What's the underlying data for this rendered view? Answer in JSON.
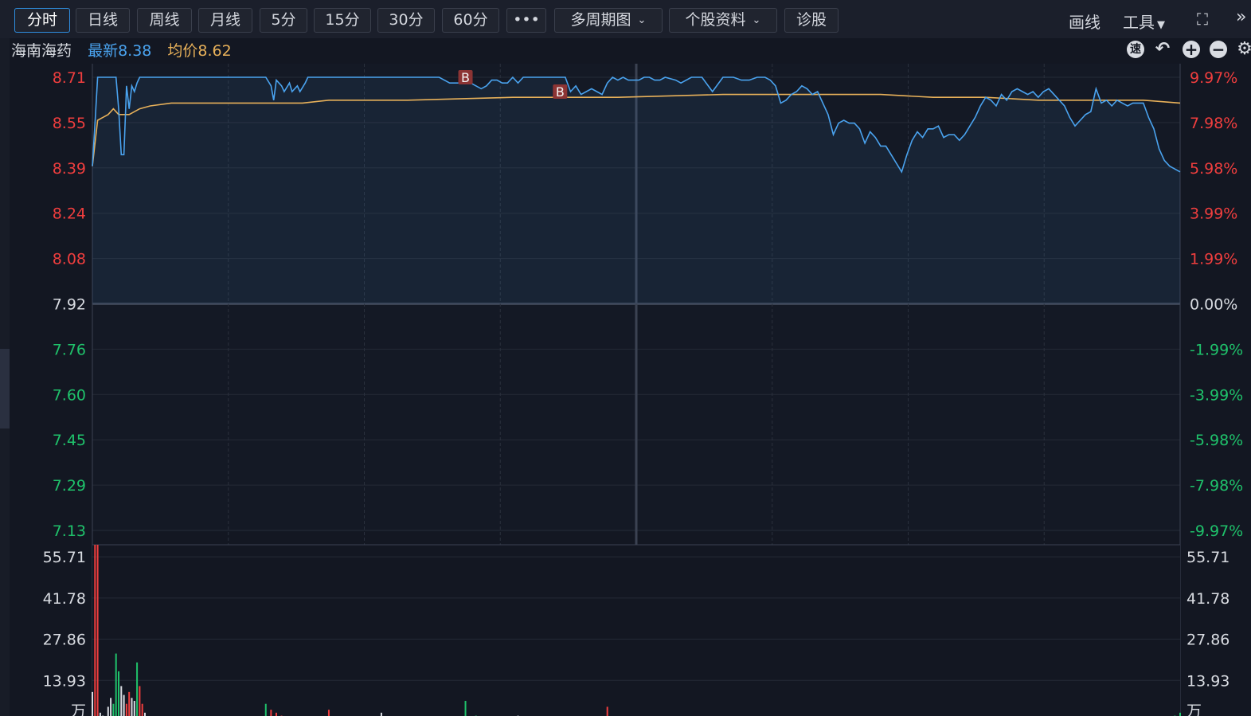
{
  "toolbar": {
    "periods": [
      {
        "label": "分时",
        "active": true
      },
      {
        "label": "日线"
      },
      {
        "label": "周线"
      },
      {
        "label": "月线"
      },
      {
        "label": "5分"
      },
      {
        "label": "15分"
      },
      {
        "label": "30分"
      },
      {
        "label": "60分"
      },
      {
        "label": "•••"
      },
      {
        "label": "多周期图"
      },
      {
        "label": "个股资料"
      },
      {
        "label": "诊股"
      }
    ],
    "draw_label": "画线",
    "tools_label": "工具"
  },
  "info": {
    "name": "海南海药",
    "latest": "最新8.38",
    "avg": "均价8.62"
  },
  "icons": [
    "speed-icon",
    "undo-icon",
    "zoom-in-icon",
    "zoom-out-icon",
    "settings-icon"
  ],
  "colors": {
    "price_line": "#4aa3ef",
    "avg_line": "#e8b15a",
    "up": "#f03e3e",
    "down": "#1fc26b",
    "neutral": "#d9dce2",
    "trade_marker": "#8c3434"
  },
  "chart_data": [
    {
      "type": "line",
      "name": "intraday-price",
      "ylim": [
        7.13,
        8.71
      ],
      "y_ticks_left": [
        "8.71",
        "8.55",
        "8.39",
        "8.24",
        "8.08",
        "7.92",
        "7.76",
        "7.60",
        "7.45",
        "7.29",
        "7.13"
      ],
      "y_ticks_right": [
        "9.97%",
        "7.98%",
        "5.98%",
        "3.99%",
        "1.99%",
        "0.00%",
        "-1.99%",
        "-3.99%",
        "-5.98%",
        "-7.98%",
        "-9.97%"
      ],
      "prev_close": 7.92,
      "sessions": 240,
      "series": [
        {
          "name": "price",
          "points": [
            [
              0,
              8.4
            ],
            [
              1,
              8.55
            ],
            [
              2,
              8.71
            ],
            [
              9,
              8.71
            ],
            [
              10,
              8.6
            ],
            [
              11,
              8.44
            ],
            [
              12,
              8.44
            ],
            [
              13,
              8.68
            ],
            [
              14,
              8.6
            ],
            [
              15,
              8.68
            ],
            [
              16,
              8.66
            ],
            [
              17,
              8.69
            ],
            [
              18,
              8.71
            ],
            [
              66,
              8.71
            ],
            [
              68,
              8.68
            ],
            [
              69,
              8.63
            ],
            [
              70,
              8.7
            ],
            [
              72,
              8.68
            ],
            [
              73,
              8.66
            ],
            [
              75,
              8.69
            ],
            [
              76,
              8.66
            ],
            [
              78,
              8.68
            ],
            [
              79,
              8.66
            ],
            [
              81,
              8.69
            ],
            [
              82,
              8.71
            ],
            [
              83,
              8.71
            ],
            [
              120,
              8.71
            ],
            [
              128,
              8.71
            ],
            [
              132,
              8.71
            ],
            [
              136,
              8.69
            ],
            [
              138,
              8.69
            ],
            [
              140,
              8.69
            ],
            [
              142,
              8.7
            ],
            [
              144,
              8.69
            ],
            [
              146,
              8.68
            ],
            [
              148,
              8.67
            ],
            [
              150,
              8.68
            ],
            [
              152,
              8.7
            ],
            [
              154,
              8.7
            ],
            [
              156,
              8.69
            ],
            [
              158,
              8.69
            ],
            [
              160,
              8.71
            ],
            [
              162,
              8.69
            ],
            [
              164,
              8.71
            ],
            [
              166,
              8.71
            ],
            [
              180,
              8.71
            ],
            [
              182,
              8.66
            ],
            [
              184,
              8.68
            ],
            [
              186,
              8.65
            ],
            [
              188,
              8.66
            ],
            [
              190,
              8.67
            ],
            [
              192,
              8.66
            ],
            [
              194,
              8.65
            ],
            [
              196,
              8.69
            ],
            [
              198,
              8.71
            ],
            [
              200,
              8.7
            ],
            [
              202,
              8.71
            ],
            [
              204,
              8.7
            ],
            [
              206,
              8.7
            ],
            [
              208,
              8.7
            ],
            [
              210,
              8.71
            ],
            [
              212,
              8.71
            ],
            [
              214,
              8.7
            ],
            [
              216,
              8.7
            ],
            [
              218,
              8.71
            ],
            [
              222,
              8.7
            ],
            [
              224,
              8.69
            ],
            [
              228,
              8.71
            ],
            [
              232,
              8.71
            ],
            [
              236,
              8.66
            ],
            [
              240,
              8.71
            ],
            [
              244,
              8.71
            ],
            [
              247,
              8.7
            ],
            [
              250,
              8.7
            ],
            [
              253,
              8.71
            ],
            [
              256,
              8.71
            ],
            [
              258,
              8.7
            ],
            [
              260,
              8.68
            ],
            [
              262,
              8.62
            ],
            [
              264,
              8.63
            ],
            [
              266,
              8.65
            ],
            [
              268,
              8.66
            ],
            [
              270,
              8.68
            ],
            [
              272,
              8.67
            ],
            [
              274,
              8.65
            ],
            [
              276,
              8.66
            ],
            [
              278,
              8.62
            ],
            [
              280,
              8.58
            ],
            [
              282,
              8.51
            ],
            [
              284,
              8.55
            ],
            [
              286,
              8.56
            ],
            [
              288,
              8.55
            ],
            [
              290,
              8.55
            ],
            [
              292,
              8.53
            ],
            [
              294,
              8.48
            ],
            [
              296,
              8.52
            ],
            [
              298,
              8.5
            ],
            [
              300,
              8.47
            ],
            [
              302,
              8.47
            ],
            [
              304,
              8.44
            ],
            [
              306,
              8.41
            ],
            [
              308,
              8.38
            ],
            [
              310,
              8.44
            ],
            [
              312,
              8.49
            ],
            [
              314,
              8.52
            ],
            [
              316,
              8.5
            ],
            [
              318,
              8.53
            ],
            [
              320,
              8.53
            ],
            [
              322,
              8.54
            ],
            [
              324,
              8.5
            ],
            [
              326,
              8.51
            ],
            [
              328,
              8.51
            ],
            [
              330,
              8.49
            ],
            [
              332,
              8.51
            ],
            [
              334,
              8.54
            ],
            [
              336,
              8.57
            ],
            [
              338,
              8.61
            ],
            [
              340,
              8.64
            ],
            [
              342,
              8.63
            ],
            [
              344,
              8.61
            ],
            [
              346,
              8.65
            ],
            [
              348,
              8.63
            ],
            [
              350,
              8.66
            ],
            [
              352,
              8.67
            ],
            [
              354,
              8.66
            ],
            [
              356,
              8.65
            ],
            [
              358,
              8.66
            ],
            [
              360,
              8.64
            ],
            [
              362,
              8.66
            ],
            [
              364,
              8.67
            ],
            [
              366,
              8.65
            ],
            [
              368,
              8.63
            ],
            [
              370,
              8.61
            ],
            [
              372,
              8.57
            ],
            [
              374,
              8.54
            ],
            [
              376,
              8.56
            ],
            [
              378,
              8.58
            ],
            [
              380,
              8.59
            ],
            [
              382,
              8.67
            ],
            [
              384,
              8.62
            ],
            [
              386,
              8.63
            ],
            [
              388,
              8.61
            ],
            [
              390,
              8.63
            ],
            [
              392,
              8.62
            ],
            [
              394,
              8.61
            ],
            [
              396,
              8.62
            ],
            [
              398,
              8.62
            ],
            [
              400,
              8.62
            ],
            [
              402,
              8.57
            ],
            [
              404,
              8.53
            ],
            [
              406,
              8.46
            ],
            [
              408,
              8.42
            ],
            [
              410,
              8.4
            ],
            [
              412,
              8.39
            ],
            [
              414,
              8.38
            ]
          ]
        },
        {
          "name": "avg",
          "points": [
            [
              0,
              8.4
            ],
            [
              2,
              8.56
            ],
            [
              6,
              8.58
            ],
            [
              8,
              8.6
            ],
            [
              10,
              8.58
            ],
            [
              14,
              8.58
            ],
            [
              18,
              8.6
            ],
            [
              22,
              8.61
            ],
            [
              30,
              8.62
            ],
            [
              60,
              8.62
            ],
            [
              70,
              8.62
            ],
            [
              80,
              8.62
            ],
            [
              90,
              8.63
            ],
            [
              120,
              8.63
            ],
            [
              160,
              8.64
            ],
            [
              200,
              8.64
            ],
            [
              240,
              8.65
            ],
            [
              260,
              8.65
            ],
            [
              280,
              8.65
            ],
            [
              300,
              8.65
            ],
            [
              320,
              8.64
            ],
            [
              340,
              8.64
            ],
            [
              360,
              8.63
            ],
            [
              380,
              8.63
            ],
            [
              400,
              8.63
            ],
            [
              414,
              8.62
            ]
          ]
        }
      ],
      "markers": [
        {
          "label": "B",
          "x": 142,
          "y": 8.71
        },
        {
          "label": "B",
          "x": 178,
          "y": 8.66
        }
      ]
    },
    {
      "type": "bar",
      "name": "volume",
      "unit": "万",
      "y_ticks": [
        "55.71",
        "41.78",
        "27.86",
        "13.93"
      ],
      "ylim": [
        0,
        60
      ],
      "bars": [
        {
          "x": 0,
          "v": 10,
          "c": "neutral"
        },
        {
          "x": 1,
          "v": 60,
          "c": "up"
        },
        {
          "x": 2,
          "v": 60,
          "c": "up"
        },
        {
          "x": 3,
          "v": 3,
          "c": "neutral"
        },
        {
          "x": 4,
          "v": 2,
          "c": "neutral"
        },
        {
          "x": 5,
          "v": 1,
          "c": "neutral"
        },
        {
          "x": 6,
          "v": 5,
          "c": "neutral"
        },
        {
          "x": 7,
          "v": 8,
          "c": "neutral"
        },
        {
          "x": 8,
          "v": 6,
          "c": "down"
        },
        {
          "x": 9,
          "v": 23,
          "c": "down"
        },
        {
          "x": 10,
          "v": 17,
          "c": "down"
        },
        {
          "x": 11,
          "v": 12,
          "c": "neutral"
        },
        {
          "x": 12,
          "v": 9,
          "c": "neutral"
        },
        {
          "x": 13,
          "v": 6,
          "c": "up"
        },
        {
          "x": 14,
          "v": 10,
          "c": "up"
        },
        {
          "x": 15,
          "v": 8,
          "c": "neutral"
        },
        {
          "x": 16,
          "v": 7,
          "c": "neutral"
        },
        {
          "x": 17,
          "v": 20,
          "c": "down"
        },
        {
          "x": 18,
          "v": 12,
          "c": "up"
        },
        {
          "x": 19,
          "v": 6,
          "c": "up"
        },
        {
          "x": 20,
          "v": 3,
          "c": "neutral"
        },
        {
          "x": 26,
          "v": 1,
          "c": "neutral"
        },
        {
          "x": 66,
          "v": 6,
          "c": "down"
        },
        {
          "x": 68,
          "v": 4,
          "c": "up"
        },
        {
          "x": 70,
          "v": 3,
          "c": "up"
        },
        {
          "x": 72,
          "v": 2,
          "c": "up"
        },
        {
          "x": 74,
          "v": 1,
          "c": "neutral"
        },
        {
          "x": 76,
          "v": 1,
          "c": "up"
        },
        {
          "x": 78,
          "v": 1,
          "c": "up"
        },
        {
          "x": 80,
          "v": 1,
          "c": "up"
        },
        {
          "x": 82,
          "v": 1,
          "c": "neutral"
        },
        {
          "x": 90,
          "v": 4,
          "c": "up"
        },
        {
          "x": 110,
          "v": 3,
          "c": "neutral"
        },
        {
          "x": 142,
          "v": 7,
          "c": "down"
        },
        {
          "x": 146,
          "v": 2,
          "c": "down"
        },
        {
          "x": 162,
          "v": 2,
          "c": "neutral"
        },
        {
          "x": 196,
          "v": 5,
          "c": "up"
        },
        {
          "x": 202,
          "v": 1,
          "c": "down"
        },
        {
          "x": 370,
          "v": 1,
          "c": "down"
        },
        {
          "x": 412,
          "v": 2,
          "c": "down"
        },
        {
          "x": 414,
          "v": 3,
          "c": "down"
        }
      ]
    }
  ]
}
